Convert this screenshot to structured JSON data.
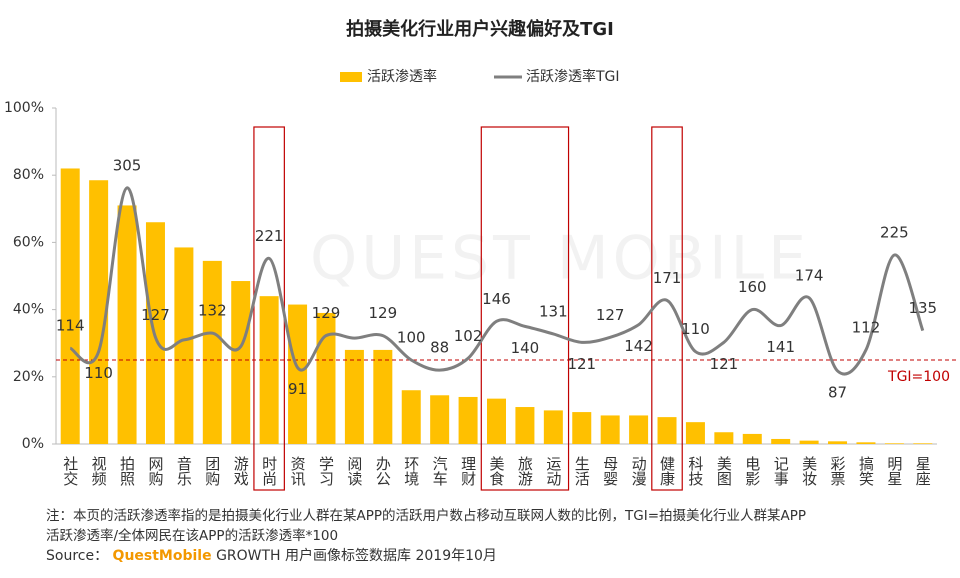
{
  "chart_data": {
    "type": "bar_line",
    "title": "拍摄美化行业用户兴趣偏好及TGI",
    "watermark": "QUEST MOBILE",
    "categories": [
      "社交",
      "视频",
      "拍照",
      "网购",
      "音乐",
      "团购",
      "游戏",
      "时尚",
      "资讯",
      "学习",
      "阅读",
      "办公",
      "环境",
      "汽车",
      "理财",
      "美食",
      "旅游",
      "运动",
      "生活",
      "母婴",
      "动漫",
      "健康",
      "科技",
      "美图",
      "电影",
      "记事",
      "美妆",
      "彩票",
      "搞笑",
      "明星",
      "星座"
    ],
    "series": [
      {
        "name": "活跃渗透率",
        "type": "bar",
        "color": "#FFC000",
        "values": [
          82,
          78.5,
          71,
          66,
          58.5,
          54.5,
          48.5,
          44,
          41.5,
          39,
          28,
          28,
          16,
          14.5,
          14,
          13.5,
          11,
          10,
          9.5,
          8.5,
          8.5,
          8,
          6.5,
          3.5,
          3,
          1.5,
          1,
          0.8,
          0.5,
          0.2,
          0.2
        ]
      },
      {
        "name": "活跃渗透率TGI",
        "type": "line",
        "axis": "y2",
        "color": "#7F7F7F",
        "values": [
          114,
          110,
          305,
          127,
          124,
          132,
          116,
          221,
          91,
          129,
          126,
          129,
          100,
          88,
          102,
          146,
          140,
          131,
          121,
          127,
          142,
          171,
          110,
          121,
          160,
          141,
          174,
          87,
          112,
          225,
          135
        ],
        "value_labels": [
          "114",
          "110",
          "305",
          "127",
          null,
          "132",
          null,
          "221",
          "91",
          "129",
          null,
          "129",
          "100",
          "88",
          "102",
          "146",
          "140",
          "131",
          "121",
          "127",
          "142",
          "171",
          "110",
          "121",
          "160",
          "141",
          "174",
          "87",
          "112",
          "225",
          "135"
        ]
      }
    ],
    "ylim": [
      0,
      100
    ],
    "yticks": [
      {
        "value": 0,
        "label": "0%"
      },
      {
        "value": 20,
        "label": "20%"
      },
      {
        "value": 40,
        "label": "40%"
      },
      {
        "value": 60,
        "label": "60%"
      },
      {
        "value": 80,
        "label": "80%"
      },
      {
        "value": 100,
        "label": "100%"
      }
    ],
    "y2lim": [
      0,
      400
    ],
    "reference_line": {
      "value": 100,
      "label": "TGI=100",
      "color": "#C00000"
    },
    "legend": "top"
  },
  "footer": {
    "note": [
      "注：本页的活跃渗透率指的是拍摄美化行业人群在某APP的活跃用户数占移动互联网人数的比例，TGI=拍摄美化行业人群某APP",
      "活跃渗透率/全体网民在该APP的活跃渗透率*100"
    ],
    "source_label": "Source：",
    "source_brand": "QuestMobile",
    "source_text": "GROWTH 用户画像标签数据库  2019年10月"
  }
}
